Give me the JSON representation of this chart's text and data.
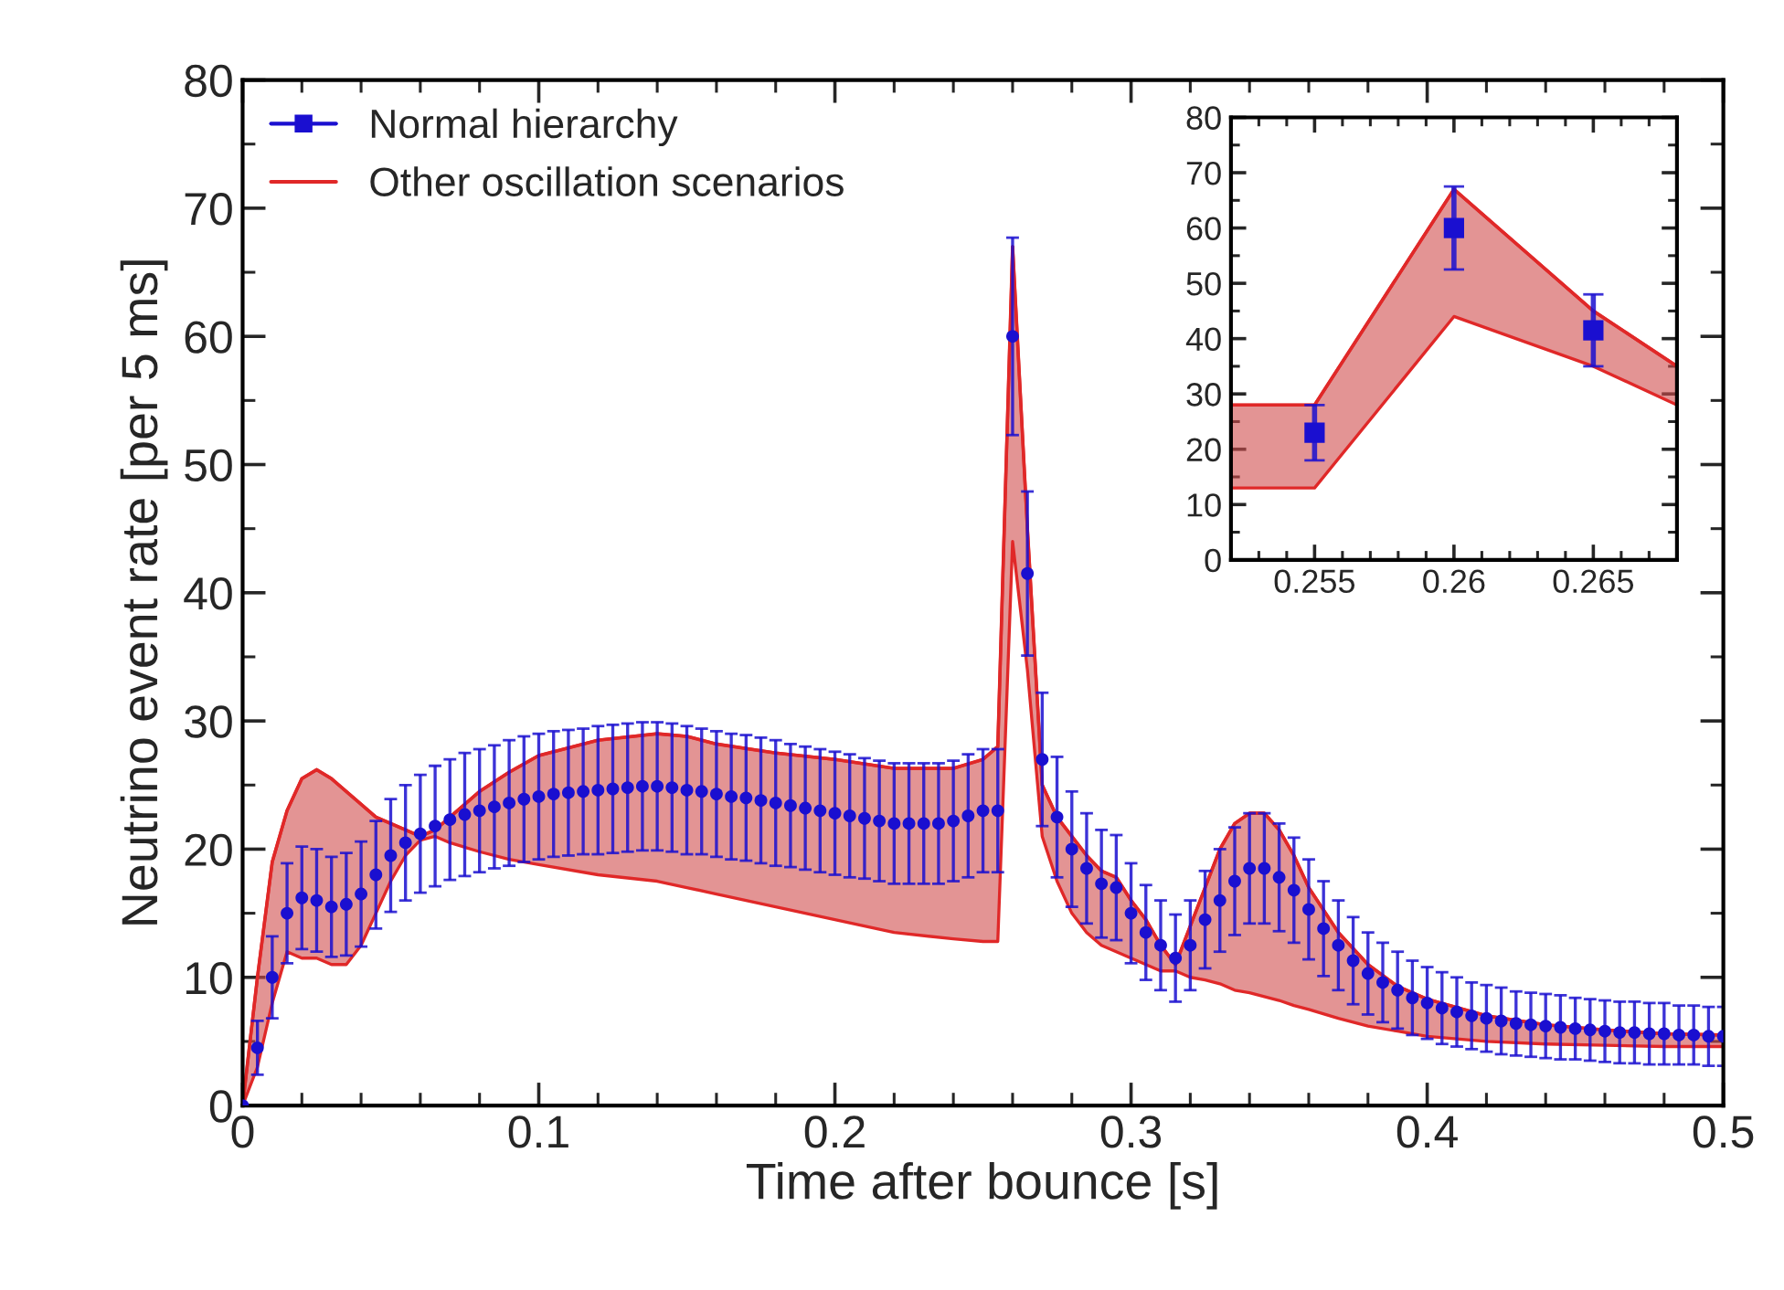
{
  "chart_data": [
    {
      "type": "scatter",
      "xlabel": "Time after bounce [s]",
      "ylabel": "Neutrino event rate [per 5 ms]",
      "xlim": [
        0,
        0.5
      ],
      "xticks": [
        0,
        0.1,
        0.2,
        0.3,
        0.4,
        0.5
      ],
      "ylim": [
        0,
        80
      ],
      "yticks": [
        0,
        10,
        20,
        30,
        40,
        50,
        60,
        70,
        80
      ],
      "legend": "top left",
      "grid": false,
      "series": [
        {
          "name": "Other oscillation scenarios",
          "type": "line",
          "color": "#e02828",
          "x": [
            0,
            0.005,
            0.01,
            0.015,
            0.02,
            0.025,
            0.03,
            0.035,
            0.04,
            0.045,
            0.05,
            0.055,
            0.06,
            0.065,
            0.07,
            0.08,
            0.09,
            0.1,
            0.12,
            0.14,
            0.15,
            0.16,
            0.18,
            0.2,
            0.22,
            0.24,
            0.25,
            0.255,
            0.26,
            0.265,
            0.27,
            0.275,
            0.28,
            0.285,
            0.29,
            0.295,
            0.3,
            0.305,
            0.31,
            0.315,
            0.32,
            0.325,
            0.33,
            0.335,
            0.34,
            0.345,
            0.35,
            0.355,
            0.36,
            0.37,
            0.38,
            0.39,
            0.4,
            0.42,
            0.44,
            0.46,
            0.48,
            0.5
          ],
          "lower": [
            0,
            3,
            8,
            12,
            11.5,
            11.5,
            11,
            11,
            12.5,
            15,
            17.5,
            19.5,
            20.7,
            21,
            20.5,
            19.8,
            19.2,
            18.8,
            18,
            17.5,
            17,
            16.5,
            15.5,
            14.5,
            13.5,
            13,
            12.8,
            12.8,
            44,
            34,
            21,
            17.5,
            15,
            13.5,
            12.5,
            12,
            11.5,
            11,
            10.5,
            10.5,
            10,
            9.8,
            9.5,
            9,
            8.8,
            8.5,
            8.2,
            7.8,
            7.5,
            6.8,
            6.2,
            5.8,
            5.4,
            5,
            4.8,
            4.7,
            4.6,
            4.6
          ],
          "values": [
            0,
            10,
            19,
            23,
            25.5,
            26.2,
            25.5,
            24.5,
            23.5,
            22.5,
            22,
            21.5,
            21,
            21.5,
            22.5,
            24.5,
            26,
            27.3,
            28.5,
            29,
            28.8,
            28.2,
            27.5,
            27,
            26.3,
            26.3,
            27,
            28,
            67,
            45,
            25,
            22.5,
            21,
            19.5,
            18.3,
            17.8,
            16,
            14.5,
            12.5,
            11,
            14,
            17,
            20,
            22,
            22.8,
            22.8,
            21.5,
            19.5,
            17,
            13.5,
            11,
            9.3,
            8.3,
            7,
            6.3,
            5.9,
            5.6,
            5.5
          ],
          "upper": [
            0,
            10,
            19,
            23,
            25.5,
            26.2,
            25.5,
            24.5,
            23.5,
            22.5,
            22,
            21.5,
            21,
            21.5,
            22.5,
            24.5,
            26,
            27.3,
            28.5,
            29,
            28.8,
            28.2,
            27.5,
            27,
            26.3,
            26.3,
            27,
            28,
            67,
            45,
            25,
            22.5,
            21,
            19.5,
            18.3,
            17.8,
            16,
            14.5,
            12.5,
            11,
            14,
            17,
            20,
            22,
            22.8,
            22.8,
            21.5,
            19.5,
            17,
            13.5,
            11,
            9.3,
            8.3,
            7,
            6.3,
            5.9,
            5.6,
            5.5
          ]
        },
        {
          "name": "Normal hierarchy",
          "color": "#1a0fd0",
          "marker": "circle",
          "x": [
            0,
            0.005,
            0.01,
            0.015,
            0.02,
            0.025,
            0.03,
            0.035,
            0.04,
            0.045,
            0.05,
            0.055,
            0.06,
            0.065,
            0.07,
            0.075,
            0.08,
            0.085,
            0.09,
            0.095,
            0.1,
            0.105,
            0.11,
            0.115,
            0.12,
            0.125,
            0.13,
            0.135,
            0.14,
            0.145,
            0.15,
            0.155,
            0.16,
            0.165,
            0.17,
            0.175,
            0.18,
            0.185,
            0.19,
            0.195,
            0.2,
            0.205,
            0.21,
            0.215,
            0.22,
            0.225,
            0.23,
            0.235,
            0.24,
            0.245,
            0.25,
            0.255,
            0.26,
            0.265,
            0.27,
            0.275,
            0.28,
            0.285,
            0.29,
            0.295,
            0.3,
            0.305,
            0.31,
            0.315,
            0.32,
            0.325,
            0.33,
            0.335,
            0.34,
            0.345,
            0.35,
            0.355,
            0.36,
            0.365,
            0.37,
            0.375,
            0.38,
            0.385,
            0.39,
            0.395,
            0.4,
            0.405,
            0.41,
            0.415,
            0.42,
            0.425,
            0.43,
            0.435,
            0.44,
            0.445,
            0.45,
            0.455,
            0.46,
            0.465,
            0.47,
            0.475,
            0.48,
            0.485,
            0.49,
            0.495,
            0.5
          ],
          "values": [
            0,
            4.5,
            10,
            15,
            16.2,
            16,
            15.5,
            15.7,
            16.5,
            18,
            19.5,
            20.5,
            21.2,
            21.8,
            22.3,
            22.7,
            23,
            23.3,
            23.6,
            23.9,
            24.1,
            24.3,
            24.4,
            24.5,
            24.6,
            24.7,
            24.8,
            24.9,
            24.9,
            24.8,
            24.6,
            24.5,
            24.3,
            24.1,
            24,
            23.8,
            23.6,
            23.4,
            23.2,
            23,
            22.8,
            22.6,
            22.4,
            22.2,
            22,
            22,
            22,
            22,
            22.2,
            22.6,
            23,
            23,
            60,
            41.5,
            27,
            22.5,
            20,
            18.5,
            17.3,
            17,
            15,
            13.5,
            12.5,
            11.5,
            12.5,
            14.5,
            16,
            17.5,
            18.5,
            18.5,
            17.8,
            16.8,
            15.3,
            13.8,
            12.5,
            11.3,
            10.3,
            9.6,
            9,
            8.4,
            8,
            7.6,
            7.3,
            7,
            6.8,
            6.6,
            6.4,
            6.3,
            6.2,
            6.1,
            6,
            5.9,
            5.8,
            5.7,
            5.7,
            5.6,
            5.6,
            5.5,
            5.5,
            5.4,
            5.4
          ],
          "errors": [
            null,
            2.1,
            3.2,
            3.9,
            4,
            4,
            3.9,
            4,
            4.1,
            4.2,
            4.4,
            4.5,
            4.6,
            4.7,
            4.7,
            4.8,
            4.8,
            4.8,
            4.9,
            4.9,
            4.9,
            4.9,
            4.9,
            4.9,
            5,
            5,
            5,
            5,
            5,
            5,
            5,
            4.9,
            4.9,
            4.9,
            4.9,
            4.9,
            4.9,
            4.8,
            4.8,
            4.8,
            4.8,
            4.8,
            4.7,
            4.7,
            4.7,
            4.7,
            4.7,
            4.7,
            4.7,
            4.8,
            4.8,
            4.8,
            7.7,
            6.4,
            5.2,
            4.7,
            4.5,
            4.3,
            4.2,
            4.1,
            3.9,
            3.7,
            3.5,
            3.4,
            3.5,
            3.8,
            4,
            4.2,
            4.3,
            4.3,
            4.2,
            4.1,
            3.9,
            3.7,
            3.5,
            3.4,
            3.2,
            3.1,
            3,
            2.9,
            2.8,
            2.8,
            2.7,
            2.6,
            2.6,
            2.6,
            2.5,
            2.5,
            2.5,
            2.5,
            2.4,
            2.4,
            2.4,
            2.4,
            2.4,
            2.4,
            2.4,
            2.3,
            2.3,
            2.3,
            2.3
          ]
        }
      ]
    },
    {
      "type": "scatter",
      "xlim": [
        0.252,
        0.268
      ],
      "xticks": [
        0.255,
        0.26,
        0.265
      ],
      "ylim": [
        0,
        80
      ],
      "yticks": [
        0,
        10,
        20,
        30,
        40,
        50,
        60,
        70,
        80
      ],
      "grid": false,
      "series": [
        {
          "type": "line",
          "color": "#e02828",
          "x": [
            0.252,
            0.255,
            0.26,
            0.265,
            0.268
          ],
          "lower": [
            13,
            13,
            44,
            35,
            28
          ],
          "values": [
            28,
            28,
            67,
            45,
            35
          ],
          "upper": [
            28,
            28,
            67,
            45,
            35
          ]
        },
        {
          "color": "#1a0fd0",
          "marker": "square",
          "x": [
            0.255,
            0.26,
            0.265
          ],
          "values": [
            23,
            60,
            41.5
          ],
          "errors": [
            5,
            7.5,
            6.5
          ]
        }
      ]
    }
  ]
}
